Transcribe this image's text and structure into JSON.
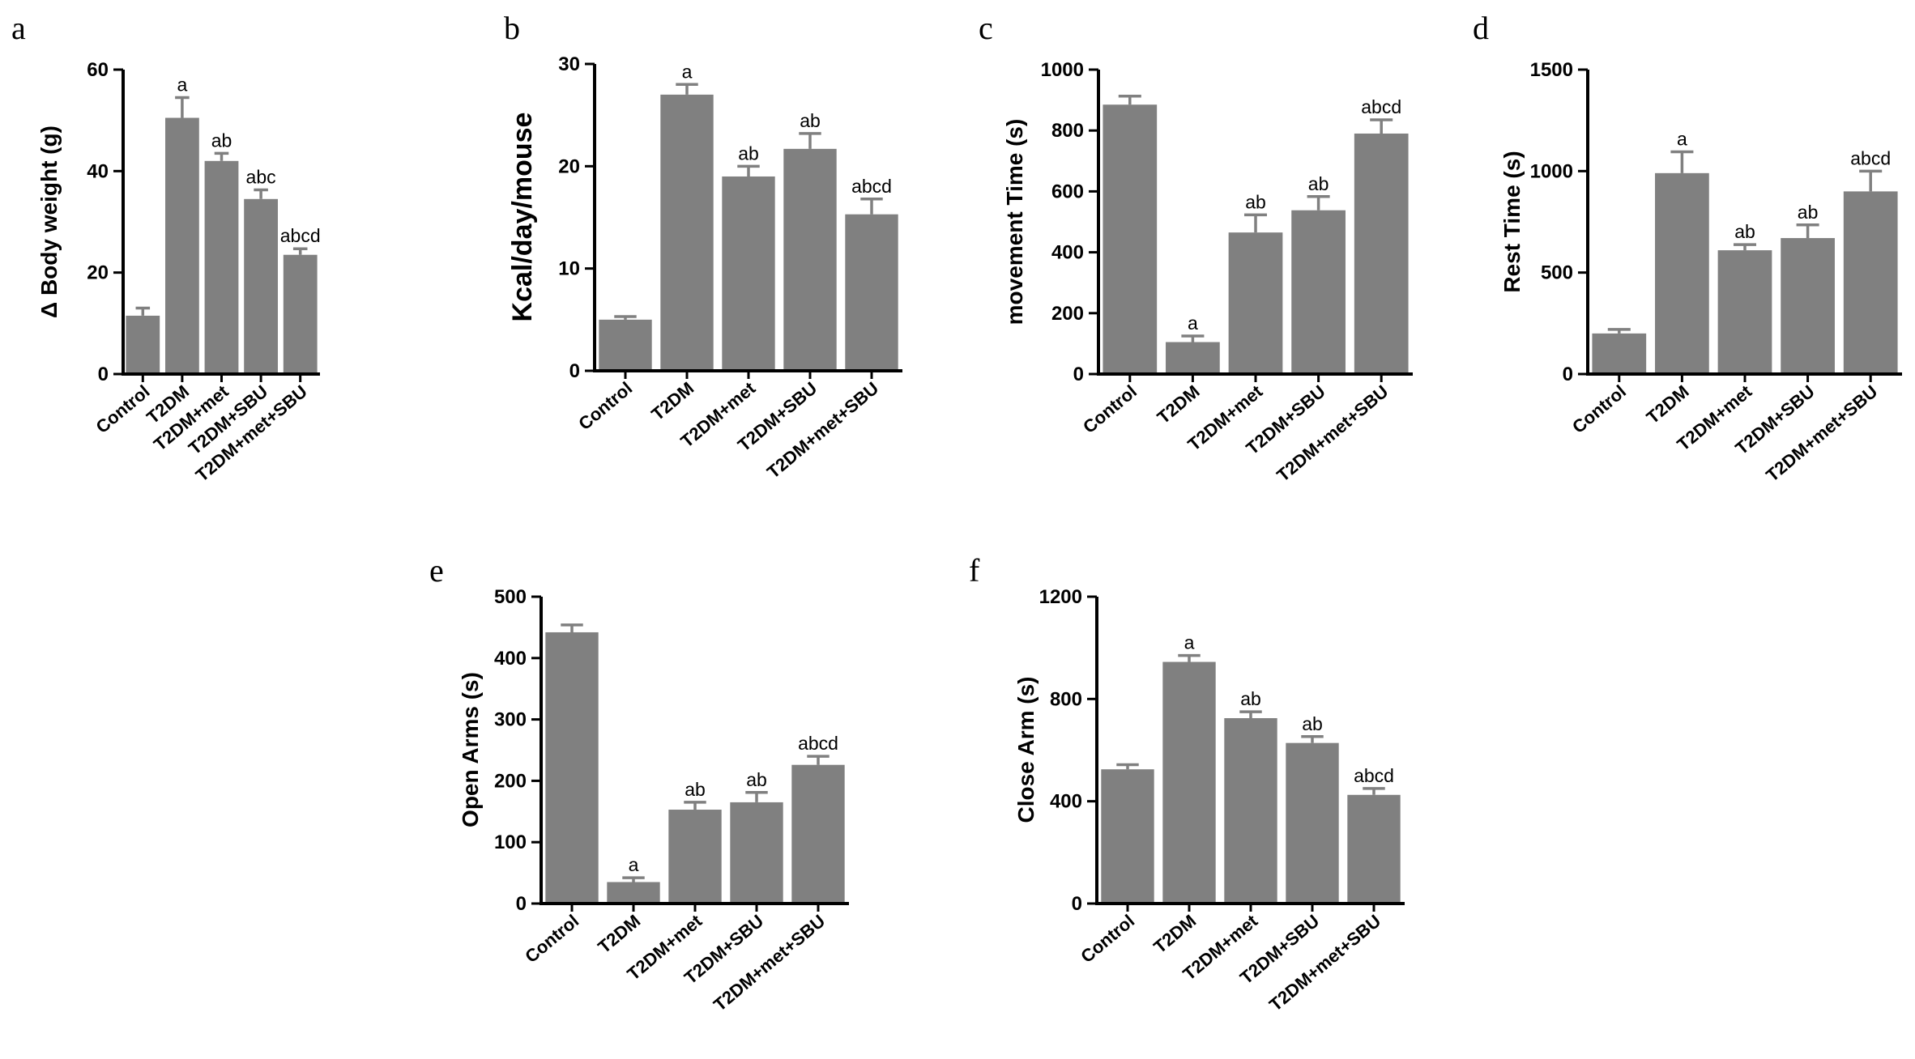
{
  "chart_data": [
    {
      "panel": "a",
      "type": "bar",
      "ylabel": "Δ Body weight (g)",
      "ylim": [
        0,
        60
      ],
      "yticks": [
        0,
        20,
        40,
        60
      ],
      "categories": [
        "Control",
        "T2DM",
        "T2DM+met",
        "T2DM+SBU",
        "T2DM+met+SBU"
      ],
      "values": [
        11.5,
        50.5,
        42,
        34.5,
        23.5
      ],
      "errors": [
        1.5,
        4,
        1.5,
        1.8,
        1.2
      ],
      "significance": [
        "",
        "a",
        "ab",
        "abc",
        "abcd"
      ]
    },
    {
      "panel": "b",
      "type": "bar",
      "ylabel": "Kcal/day/mouse",
      "ylim": [
        0,
        30
      ],
      "yticks": [
        0,
        10,
        20,
        30
      ],
      "categories": [
        "Control",
        "T2DM",
        "T2DM+met",
        "T2DM+SBU",
        "T2DM+met+SBU"
      ],
      "values": [
        5,
        27,
        19,
        21.7,
        15.3
      ],
      "errors": [
        0.3,
        1,
        1,
        1.5,
        1.5
      ],
      "significance": [
        "",
        "a",
        "ab",
        "ab",
        "abcd"
      ]
    },
    {
      "panel": "c",
      "type": "bar",
      "ylabel": "movement Time (s)",
      "ylim": [
        0,
        1000
      ],
      "yticks": [
        0,
        200,
        400,
        600,
        800,
        1000
      ],
      "categories": [
        "Control",
        "T2DM",
        "T2DM+met",
        "T2DM+SBU",
        "T2DM+met+SBU"
      ],
      "values": [
        885,
        105,
        465,
        538,
        790
      ],
      "errors": [
        28,
        20,
        58,
        45,
        45
      ],
      "significance": [
        "",
        "a",
        "ab",
        "ab",
        "abcd"
      ]
    },
    {
      "panel": "d",
      "type": "bar",
      "ylabel": "Rest Time (s)",
      "ylim": [
        0,
        1500
      ],
      "yticks": [
        0,
        500,
        1000,
        1500
      ],
      "categories": [
        "Control",
        "T2DM",
        "T2DM+met",
        "T2DM+SBU",
        "T2DM+met+SBU"
      ],
      "values": [
        200,
        990,
        610,
        670,
        900
      ],
      "errors": [
        20,
        105,
        28,
        65,
        100
      ],
      "significance": [
        "",
        "a",
        "ab",
        "ab",
        "abcd"
      ]
    },
    {
      "panel": "e",
      "type": "bar",
      "ylabel": "Open Arms (s)",
      "ylim": [
        0,
        500
      ],
      "yticks": [
        0,
        100,
        200,
        300,
        400,
        500
      ],
      "categories": [
        "Control",
        "T2DM",
        "T2DM+met",
        "T2DM+SBU",
        "T2DM+met+SBU"
      ],
      "values": [
        442,
        35,
        153,
        165,
        226
      ],
      "errors": [
        12,
        7,
        12,
        16,
        14
      ],
      "significance": [
        "",
        "a",
        "ab",
        "ab",
        "abcd"
      ]
    },
    {
      "panel": "f",
      "type": "bar",
      "ylabel": "Close Arm (s)",
      "ylim": [
        0,
        1200
      ],
      "yticks": [
        0,
        400,
        800,
        1200
      ],
      "categories": [
        "Control",
        "T2DM",
        "T2DM+met",
        "T2DM+SBU",
        "T2DM+met+SBU"
      ],
      "values": [
        525,
        945,
        725,
        628,
        425
      ],
      "errors": [
        18,
        25,
        25,
        25,
        25
      ],
      "significance": [
        "",
        "a",
        "ab",
        "ab",
        "abcd"
      ]
    }
  ]
}
